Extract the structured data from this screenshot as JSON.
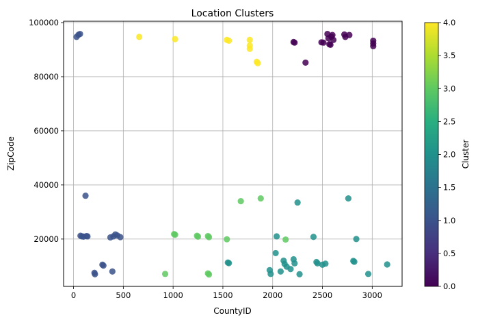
{
  "chart_data": {
    "type": "scatter",
    "title": "Location Clusters",
    "xlabel": "CountyID",
    "ylabel": "ZipCode",
    "xlim": [
      -100,
      3300
    ],
    "ylim": [
      2500,
      100500
    ],
    "x_ticks": [
      0,
      500,
      1000,
      1500,
      2000,
      2500,
      3000
    ],
    "y_ticks": [
      20000,
      40000,
      60000,
      80000,
      100000
    ],
    "grid": true,
    "colorbar": {
      "label": "Cluster",
      "range": [
        0,
        4
      ],
      "ticks": [
        "0.0",
        "0.5",
        "1.0",
        "1.5",
        "2.0",
        "2.5",
        "3.0",
        "3.5",
        "4.0"
      ],
      "colormap": "viridis",
      "colors": [
        "#440154",
        "#3b528b",
        "#21918c",
        "#5ec962",
        "#fde725"
      ]
    },
    "points": [
      {
        "x": 2210,
        "y": 92800,
        "c": 0
      },
      {
        "x": 2220,
        "y": 92600,
        "c": 0
      },
      {
        "x": 2330,
        "y": 85200,
        "c": 0
      },
      {
        "x": 2490,
        "y": 92700,
        "c": 0
      },
      {
        "x": 2510,
        "y": 92600,
        "c": 0
      },
      {
        "x": 2550,
        "y": 95800,
        "c": 0
      },
      {
        "x": 2560,
        "y": 94200,
        "c": 0
      },
      {
        "x": 2570,
        "y": 92000,
        "c": 0
      },
      {
        "x": 2580,
        "y": 91800,
        "c": 0
      },
      {
        "x": 2590,
        "y": 94800,
        "c": 0
      },
      {
        "x": 2600,
        "y": 95400,
        "c": 0
      },
      {
        "x": 2610,
        "y": 93600,
        "c": 0
      },
      {
        "x": 2720,
        "y": 95600,
        "c": 0
      },
      {
        "x": 2730,
        "y": 94700,
        "c": 0
      },
      {
        "x": 2770,
        "y": 95400,
        "c": 0
      },
      {
        "x": 3010,
        "y": 93300,
        "c": 0
      },
      {
        "x": 3010,
        "y": 92300,
        "c": 0
      },
      {
        "x": 3010,
        "y": 91300,
        "c": 0
      },
      {
        "x": 30,
        "y": 94700,
        "c": 1
      },
      {
        "x": 50,
        "y": 95500,
        "c": 1
      },
      {
        "x": 65,
        "y": 95800,
        "c": 1
      },
      {
        "x": 120,
        "y": 36000,
        "c": 1
      },
      {
        "x": 70,
        "y": 21200,
        "c": 1
      },
      {
        "x": 85,
        "y": 21000,
        "c": 1
      },
      {
        "x": 100,
        "y": 20900,
        "c": 1
      },
      {
        "x": 130,
        "y": 21100,
        "c": 1
      },
      {
        "x": 140,
        "y": 21000,
        "c": 1
      },
      {
        "x": 370,
        "y": 20600,
        "c": 1
      },
      {
        "x": 400,
        "y": 21000,
        "c": 1
      },
      {
        "x": 420,
        "y": 21700,
        "c": 1
      },
      {
        "x": 440,
        "y": 21300,
        "c": 1
      },
      {
        "x": 470,
        "y": 20700,
        "c": 1
      },
      {
        "x": 210,
        "y": 7500,
        "c": 1
      },
      {
        "x": 215,
        "y": 7000,
        "c": 1
      },
      {
        "x": 290,
        "y": 10500,
        "c": 1
      },
      {
        "x": 300,
        "y": 10200,
        "c": 1
      },
      {
        "x": 390,
        "y": 8000,
        "c": 1
      },
      {
        "x": 2250,
        "y": 33500,
        "c": 2
      },
      {
        "x": 2760,
        "y": 35000,
        "c": 2
      },
      {
        "x": 2040,
        "y": 21000,
        "c": 2
      },
      {
        "x": 2410,
        "y": 20800,
        "c": 2
      },
      {
        "x": 2840,
        "y": 20000,
        "c": 2
      },
      {
        "x": 1550,
        "y": 11300,
        "c": 2
      },
      {
        "x": 1560,
        "y": 11100,
        "c": 2
      },
      {
        "x": 1970,
        "y": 8500,
        "c": 2
      },
      {
        "x": 1980,
        "y": 7100,
        "c": 2
      },
      {
        "x": 2030,
        "y": 14800,
        "c": 2
      },
      {
        "x": 2080,
        "y": 8000,
        "c": 2
      },
      {
        "x": 2110,
        "y": 12000,
        "c": 2
      },
      {
        "x": 2120,
        "y": 10800,
        "c": 2
      },
      {
        "x": 2140,
        "y": 9800,
        "c": 2
      },
      {
        "x": 2180,
        "y": 8900,
        "c": 2
      },
      {
        "x": 2210,
        "y": 12500,
        "c": 2
      },
      {
        "x": 2220,
        "y": 11000,
        "c": 2
      },
      {
        "x": 2270,
        "y": 7000,
        "c": 2
      },
      {
        "x": 2440,
        "y": 11500,
        "c": 2
      },
      {
        "x": 2450,
        "y": 11000,
        "c": 2
      },
      {
        "x": 2500,
        "y": 10500,
        "c": 2
      },
      {
        "x": 2530,
        "y": 10900,
        "c": 2
      },
      {
        "x": 2810,
        "y": 11900,
        "c": 2
      },
      {
        "x": 2820,
        "y": 11600,
        "c": 2
      },
      {
        "x": 2960,
        "y": 7100,
        "c": 2
      },
      {
        "x": 3150,
        "y": 10600,
        "c": 2
      },
      {
        "x": 1680,
        "y": 34000,
        "c": 3
      },
      {
        "x": 1880,
        "y": 35000,
        "c": 3
      },
      {
        "x": 1010,
        "y": 21800,
        "c": 3
      },
      {
        "x": 1020,
        "y": 21600,
        "c": 3
      },
      {
        "x": 1240,
        "y": 21200,
        "c": 3
      },
      {
        "x": 1250,
        "y": 20900,
        "c": 3
      },
      {
        "x": 1350,
        "y": 21100,
        "c": 3
      },
      {
        "x": 1360,
        "y": 20700,
        "c": 3
      },
      {
        "x": 1540,
        "y": 19900,
        "c": 3
      },
      {
        "x": 2130,
        "y": 19800,
        "c": 3
      },
      {
        "x": 920,
        "y": 7100,
        "c": 3
      },
      {
        "x": 1350,
        "y": 7300,
        "c": 3
      },
      {
        "x": 1360,
        "y": 6900,
        "c": 3
      },
      {
        "x": 660,
        "y": 94700,
        "c": 4
      },
      {
        "x": 1020,
        "y": 93900,
        "c": 4
      },
      {
        "x": 1540,
        "y": 93600,
        "c": 4
      },
      {
        "x": 1560,
        "y": 93300,
        "c": 4
      },
      {
        "x": 1770,
        "y": 93600,
        "c": 4
      },
      {
        "x": 1770,
        "y": 91500,
        "c": 4
      },
      {
        "x": 1770,
        "y": 90300,
        "c": 4
      },
      {
        "x": 1840,
        "y": 85500,
        "c": 4
      },
      {
        "x": 1850,
        "y": 85000,
        "c": 4
      }
    ]
  }
}
